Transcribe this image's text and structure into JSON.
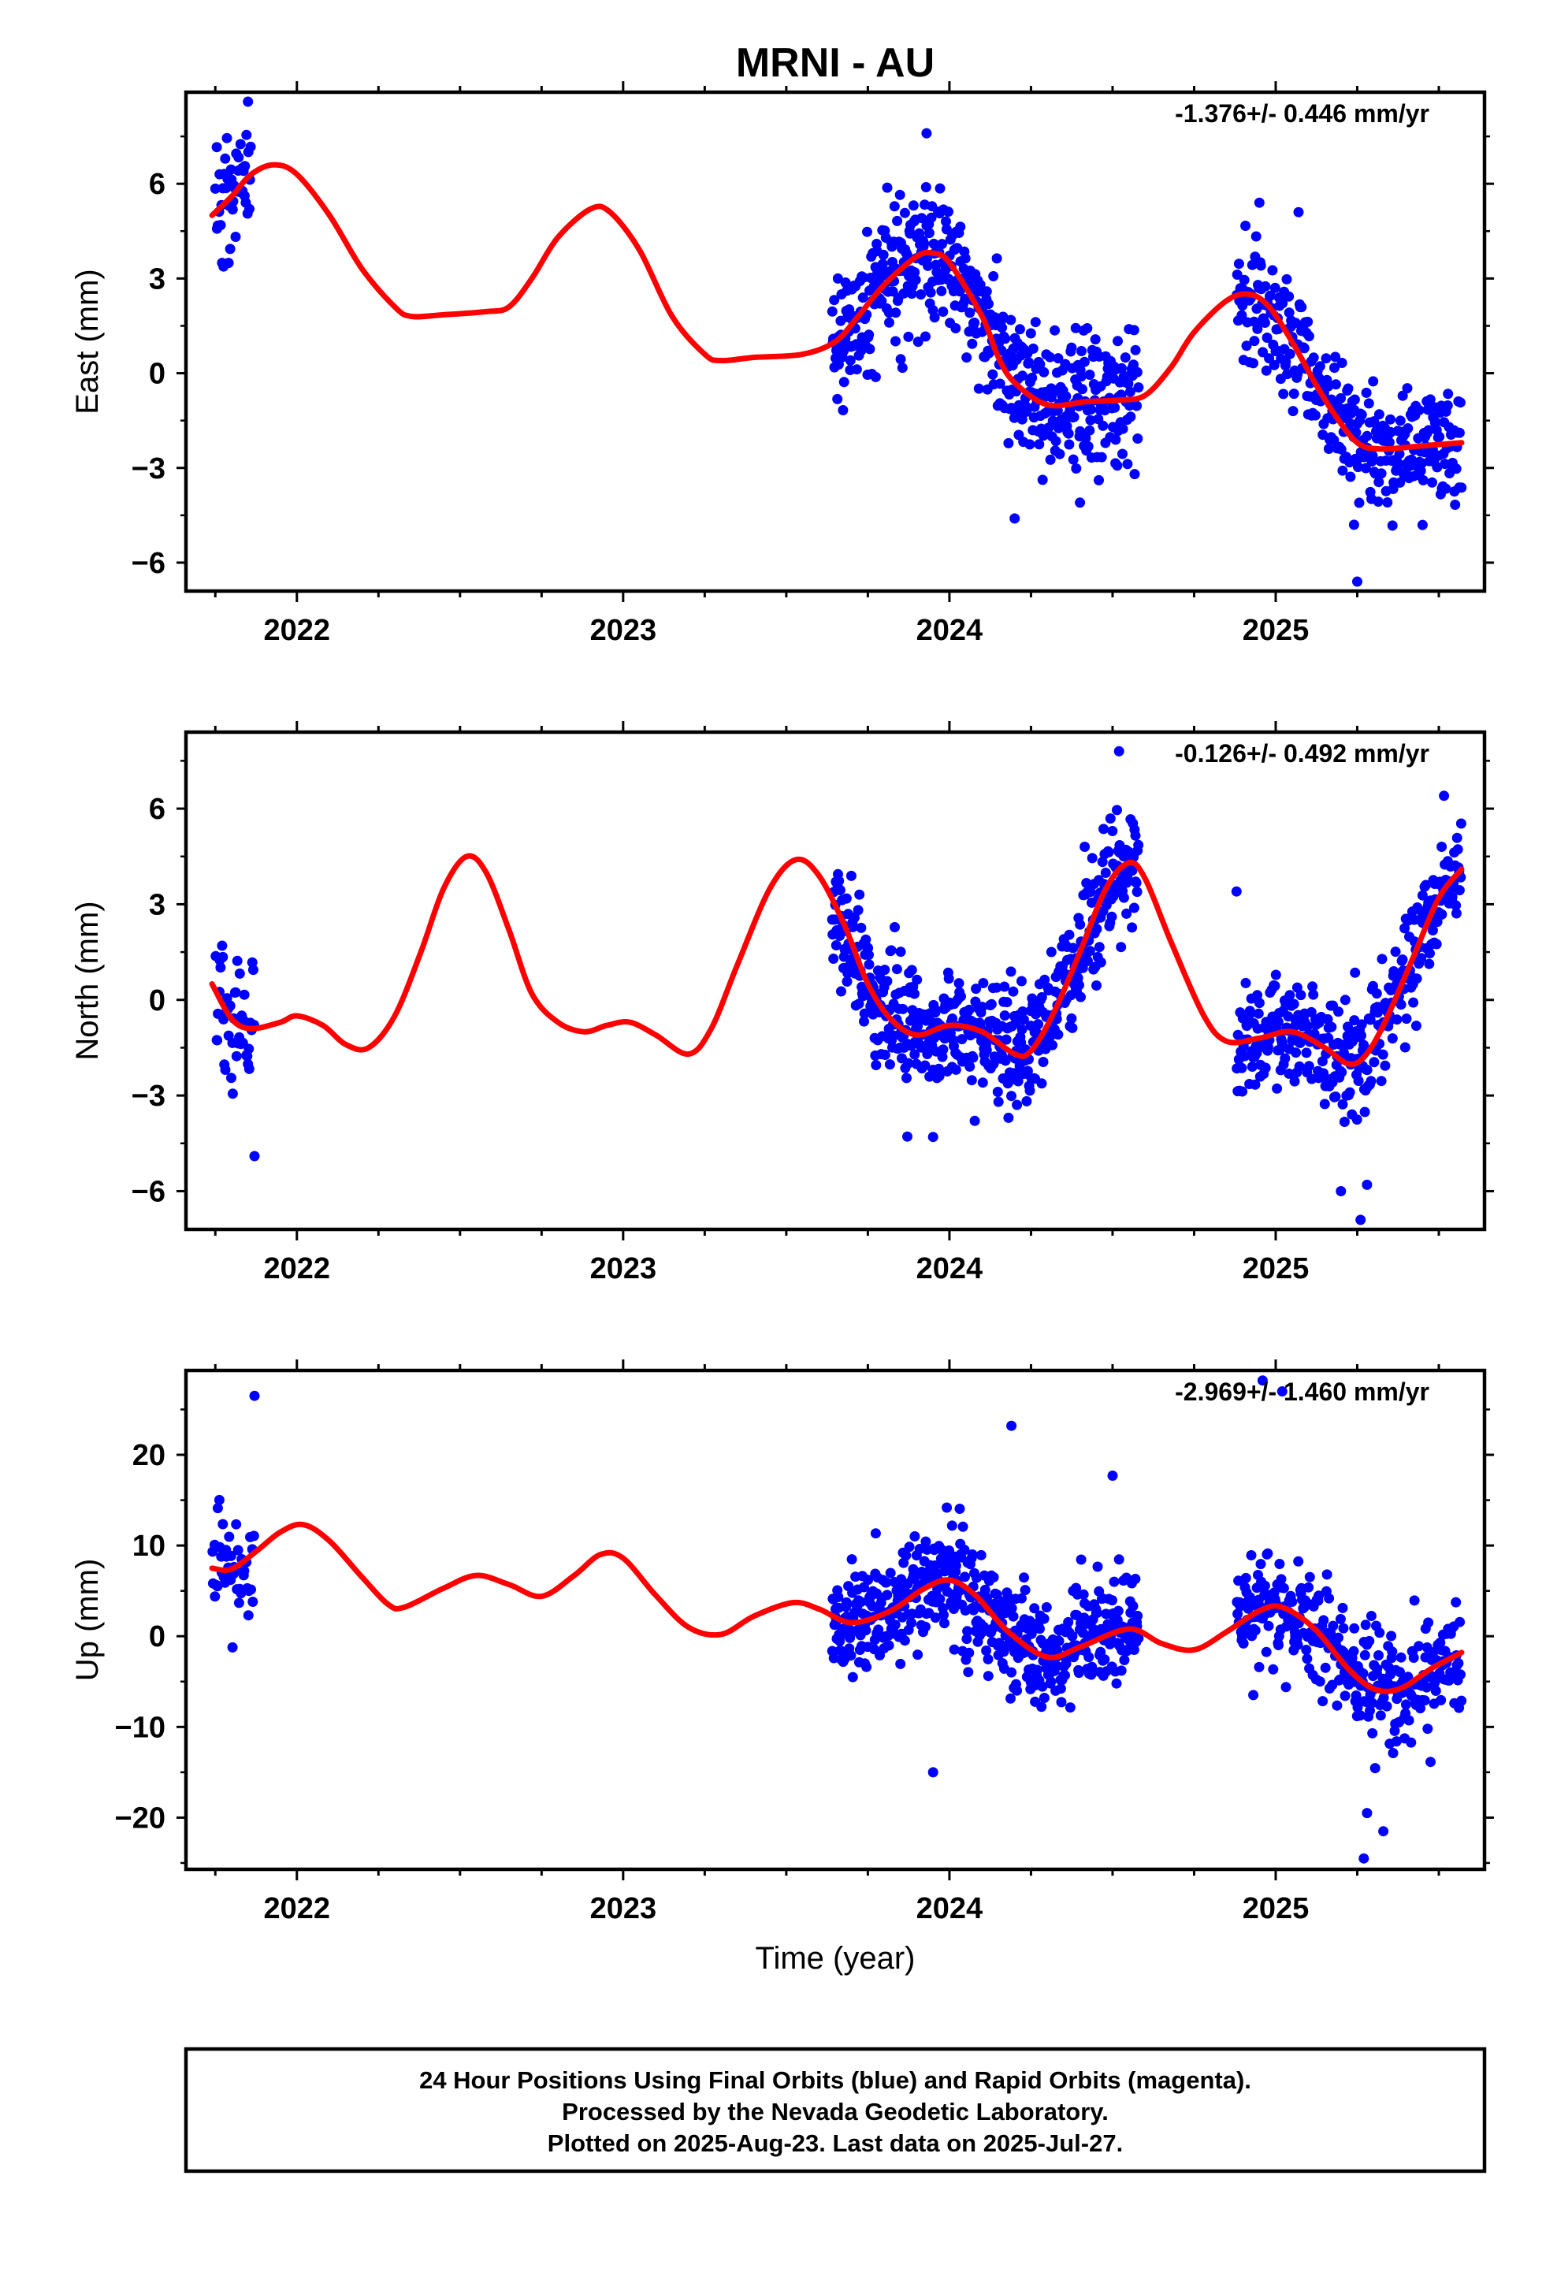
{
  "title": "MRNI - AU",
  "xlabel": "Time (year)",
  "colors": {
    "points": "#0000ff",
    "model": "#ff0000",
    "frame": "#000000"
  },
  "footer": [
    "24 Hour Positions Using Final Orbits (blue) and Rapid Orbits (magenta).",
    "Processed by the Nevada Geodetic Laboratory.",
    "Plotted on 2025-Aug-23. Last data on 2025-Jul-27."
  ],
  "chart_data": [
    {
      "type": "scatter",
      "ylabel": "East (mm)",
      "rate": "-1.376+/- 0.446 mm/yr",
      "xlim": [
        2021.66,
        2025.64
      ],
      "ylim": [
        -6.9,
        8.9
      ],
      "xticks": [
        2022,
        2023,
        2024,
        2025
      ],
      "yticks": [
        -6,
        -3,
        0,
        3,
        6
      ],
      "grid": false,
      "series": [
        {
          "style": "points",
          "color": "#0000ff",
          "segments": [
            {
              "x0": 2021.75,
              "x1": 2021.86,
              "n": 45,
              "noise": 1.5
            },
            {
              "x0": 2023.64,
              "x1": 2024.58,
              "n": 520,
              "noise": 1.5
            },
            {
              "x0": 2024.88,
              "x1": 2025.57,
              "n": 330,
              "noise": 1.35
            }
          ],
          "outliers": [
            {
              "x": 2021.85,
              "y": 8.6
            },
            {
              "x": 2024.2,
              "y": -4.6
            },
            {
              "x": 2024.4,
              "y": -4.1
            },
            {
              "x": 2023.93,
              "y": 7.6
            },
            {
              "x": 2025.24,
              "y": -4.8
            },
            {
              "x": 2025.25,
              "y": -6.6
            },
            {
              "x": 2024.95,
              "y": 5.4
            },
            {
              "x": 2025.07,
              "y": 5.1
            }
          ]
        },
        {
          "style": "line",
          "color": "#ff0000",
          "knots": [
            [
              2021.74,
              5.0
            ],
            [
              2021.8,
              5.6
            ],
            [
              2021.86,
              6.3
            ],
            [
              2021.93,
              6.6
            ],
            [
              2022.0,
              6.3
            ],
            [
              2022.1,
              5.0
            ],
            [
              2022.2,
              3.3
            ],
            [
              2022.3,
              2.1
            ],
            [
              2022.35,
              1.8
            ],
            [
              2022.45,
              1.85
            ],
            [
              2022.58,
              1.95
            ],
            [
              2022.65,
              2.1
            ],
            [
              2022.72,
              3.0
            ],
            [
              2022.8,
              4.3
            ],
            [
              2022.9,
              5.2
            ],
            [
              2022.96,
              5.1
            ],
            [
              2023.05,
              3.9
            ],
            [
              2023.15,
              1.8
            ],
            [
              2023.25,
              0.6
            ],
            [
              2023.3,
              0.4
            ],
            [
              2023.4,
              0.5
            ],
            [
              2023.55,
              0.6
            ],
            [
              2023.65,
              1.0
            ],
            [
              2023.72,
              1.8
            ],
            [
              2023.8,
              2.8
            ],
            [
              2023.9,
              3.7
            ],
            [
              2023.95,
              3.8
            ],
            [
              2024.0,
              3.5
            ],
            [
              2024.1,
              1.8
            ],
            [
              2024.15,
              0.5
            ],
            [
              2024.2,
              -0.3
            ],
            [
              2024.3,
              -1.0
            ],
            [
              2024.42,
              -0.9
            ],
            [
              2024.52,
              -0.85
            ],
            [
              2024.6,
              -0.7
            ],
            [
              2024.68,
              0.2
            ],
            [
              2024.75,
              1.3
            ],
            [
              2024.85,
              2.3
            ],
            [
              2024.92,
              2.5
            ],
            [
              2024.98,
              2.1
            ],
            [
              2025.05,
              1.0
            ],
            [
              2025.12,
              -0.3
            ],
            [
              2025.18,
              -1.3
            ],
            [
              2025.25,
              -2.2
            ],
            [
              2025.32,
              -2.4
            ],
            [
              2025.45,
              -2.3
            ],
            [
              2025.57,
              -2.2
            ]
          ]
        }
      ]
    },
    {
      "type": "scatter",
      "ylabel": "North (mm)",
      "rate": "-0.126+/- 0.492 mm/yr",
      "xlim": [
        2021.66,
        2025.64
      ],
      "ylim": [
        -7.2,
        8.4
      ],
      "xticks": [
        2022,
        2023,
        2024,
        2025
      ],
      "yticks": [
        -6,
        -3,
        0,
        3,
        6
      ],
      "grid": false,
      "series": [
        {
          "style": "points",
          "color": "#0000ff",
          "segments": [
            {
              "x0": 2021.75,
              "x1": 2021.87,
              "n": 45,
              "noise": 1.5
            },
            {
              "x0": 2023.64,
              "x1": 2024.58,
              "n": 520,
              "noise": 1.3
            },
            {
              "x0": 2024.88,
              "x1": 2025.57,
              "n": 330,
              "noise": 1.3
            }
          ],
          "outliers": [
            {
              "x": 2021.87,
              "y": -4.9
            },
            {
              "x": 2024.52,
              "y": 7.8
            },
            {
              "x": 2025.26,
              "y": -6.9
            },
            {
              "x": 2025.28,
              "y": -5.8
            },
            {
              "x": 2025.2,
              "y": -6.0
            },
            {
              "x": 2024.88,
              "y": 3.4
            },
            {
              "x": 2023.95,
              "y": -4.3
            }
          ]
        },
        {
          "style": "line",
          "color": "#ff0000",
          "knots": [
            [
              2021.74,
              0.5
            ],
            [
              2021.8,
              -0.6
            ],
            [
              2021.86,
              -0.9
            ],
            [
              2021.95,
              -0.7
            ],
            [
              2022.0,
              -0.5
            ],
            [
              2022.08,
              -0.8
            ],
            [
              2022.15,
              -1.4
            ],
            [
              2022.22,
              -1.5
            ],
            [
              2022.3,
              -0.5
            ],
            [
              2022.38,
              1.5
            ],
            [
              2022.45,
              3.5
            ],
            [
              2022.52,
              4.5
            ],
            [
              2022.58,
              4.0
            ],
            [
              2022.65,
              2.2
            ],
            [
              2022.72,
              0.2
            ],
            [
              2022.8,
              -0.7
            ],
            [
              2022.88,
              -1.0
            ],
            [
              2022.95,
              -0.8
            ],
            [
              2023.02,
              -0.7
            ],
            [
              2023.1,
              -1.1
            ],
            [
              2023.2,
              -1.7
            ],
            [
              2023.27,
              -0.9
            ],
            [
              2023.35,
              1.1
            ],
            [
              2023.45,
              3.5
            ],
            [
              2023.53,
              4.4
            ],
            [
              2023.6,
              3.9
            ],
            [
              2023.68,
              2.3
            ],
            [
              2023.75,
              0.5
            ],
            [
              2023.82,
              -0.6
            ],
            [
              2023.9,
              -1.1
            ],
            [
              2024.0,
              -0.8
            ],
            [
              2024.1,
              -1.0
            ],
            [
              2024.2,
              -1.7
            ],
            [
              2024.25,
              -1.6
            ],
            [
              2024.32,
              -0.4
            ],
            [
              2024.4,
              1.5
            ],
            [
              2024.48,
              3.5
            ],
            [
              2024.55,
              4.3
            ],
            [
              2024.6,
              3.8
            ],
            [
              2024.68,
              1.8
            ],
            [
              2024.78,
              -0.5
            ],
            [
              2024.85,
              -1.3
            ],
            [
              2024.95,
              -1.2
            ],
            [
              2025.05,
              -1.0
            ],
            [
              2025.15,
              -1.5
            ],
            [
              2025.22,
              -2.0
            ],
            [
              2025.27,
              -1.8
            ],
            [
              2025.33,
              -0.8
            ],
            [
              2025.42,
              1.3
            ],
            [
              2025.5,
              3.2
            ],
            [
              2025.57,
              4.1
            ]
          ]
        }
      ]
    },
    {
      "type": "scatter",
      "ylabel": "Up (mm)",
      "rate": "-2.969+/- 1.460 mm/yr",
      "xlim": [
        2021.66,
        2025.64
      ],
      "ylim": [
        -25.7,
        29.3
      ],
      "xticks": [
        2022,
        2023,
        2024,
        2025
      ],
      "yticks": [
        -20,
        -10,
        0,
        10,
        20
      ],
      "grid": false,
      "series": [
        {
          "style": "points",
          "color": "#0000ff",
          "segments": [
            {
              "x0": 2021.74,
              "x1": 2021.87,
              "n": 45,
              "noise": 4.5
            },
            {
              "x0": 2023.64,
              "x1": 2024.58,
              "n": 520,
              "noise": 4.2
            },
            {
              "x0": 2024.88,
              "x1": 2025.57,
              "n": 330,
              "noise": 4.2
            }
          ],
          "outliers": [
            {
              "x": 2021.87,
              "y": 26.5
            },
            {
              "x": 2024.19,
              "y": 23.2
            },
            {
              "x": 2024.96,
              "y": 28.2
            },
            {
              "x": 2025.02,
              "y": 27.0
            },
            {
              "x": 2024.5,
              "y": 17.7
            },
            {
              "x": 2025.27,
              "y": -24.5
            },
            {
              "x": 2025.33,
              "y": -21.5
            },
            {
              "x": 2025.28,
              "y": -19.5
            },
            {
              "x": 2023.95,
              "y": -15.0
            }
          ]
        },
        {
          "style": "line",
          "color": "#ff0000",
          "knots": [
            [
              2021.74,
              7.5
            ],
            [
              2021.8,
              7.4
            ],
            [
              2021.88,
              9.5
            ],
            [
              2021.95,
              11.5
            ],
            [
              2022.02,
              12.3
            ],
            [
              2022.1,
              10.5
            ],
            [
              2022.2,
              6.5
            ],
            [
              2022.28,
              3.5
            ],
            [
              2022.33,
              3.2
            ],
            [
              2022.45,
              5.3
            ],
            [
              2022.55,
              6.7
            ],
            [
              2022.65,
              5.7
            ],
            [
              2022.75,
              4.4
            ],
            [
              2022.85,
              6.7
            ],
            [
              2022.93,
              9.0
            ],
            [
              2023.0,
              8.6
            ],
            [
              2023.1,
              4.5
            ],
            [
              2023.2,
              1.0
            ],
            [
              2023.3,
              0.2
            ],
            [
              2023.4,
              2.2
            ],
            [
              2023.52,
              3.7
            ],
            [
              2023.6,
              3.0
            ],
            [
              2023.7,
              1.5
            ],
            [
              2023.82,
              2.8
            ],
            [
              2023.92,
              5.2
            ],
            [
              2024.0,
              6.2
            ],
            [
              2024.08,
              4.5
            ],
            [
              2024.18,
              0.5
            ],
            [
              2024.3,
              -2.3
            ],
            [
              2024.4,
              -1.2
            ],
            [
              2024.55,
              0.8
            ],
            [
              2024.65,
              -0.8
            ],
            [
              2024.75,
              -1.5
            ],
            [
              2024.85,
              0.5
            ],
            [
              2024.95,
              2.8
            ],
            [
              2025.02,
              3.2
            ],
            [
              2025.12,
              0.8
            ],
            [
              2025.22,
              -3.5
            ],
            [
              2025.3,
              -5.8
            ],
            [
              2025.38,
              -5.8
            ],
            [
              2025.48,
              -3.5
            ],
            [
              2025.57,
              -1.8
            ]
          ]
        }
      ]
    }
  ]
}
